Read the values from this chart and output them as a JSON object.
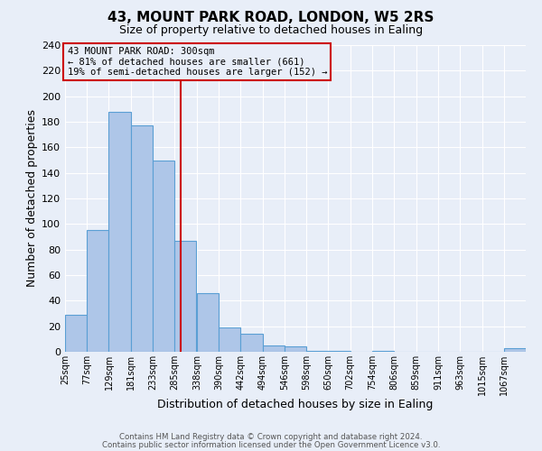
{
  "title": "43, MOUNT PARK ROAD, LONDON, W5 2RS",
  "subtitle": "Size of property relative to detached houses in Ealing",
  "xlabel": "Distribution of detached houses by size in Ealing",
  "ylabel": "Number of detached properties",
  "bin_labels": [
    "25sqm",
    "77sqm",
    "129sqm",
    "181sqm",
    "233sqm",
    "285sqm",
    "338sqm",
    "390sqm",
    "442sqm",
    "494sqm",
    "546sqm",
    "598sqm",
    "650sqm",
    "702sqm",
    "754sqm",
    "806sqm",
    "859sqm",
    "911sqm",
    "963sqm",
    "1015sqm",
    "1067sqm"
  ],
  "bin_edges": [
    25,
    77,
    129,
    181,
    233,
    285,
    338,
    390,
    442,
    494,
    546,
    598,
    650,
    702,
    754,
    806,
    859,
    911,
    963,
    1015,
    1067
  ],
  "bar_heights": [
    29,
    95,
    188,
    177,
    150,
    87,
    46,
    19,
    14,
    5,
    4,
    1,
    1,
    0,
    1,
    0,
    0,
    0,
    0,
    0,
    3
  ],
  "bar_color": "#aec6e8",
  "bar_edge_color": "#5a9fd4",
  "property_value": 300,
  "vline_color": "#cc0000",
  "annotation_line1": "43 MOUNT PARK ROAD: 300sqm",
  "annotation_line2": "← 81% of detached houses are smaller (661)",
  "annotation_line3": "19% of semi-detached houses are larger (152) →",
  "annotation_box_edge_color": "#cc0000",
  "footer_line1": "Contains HM Land Registry data © Crown copyright and database right 2024.",
  "footer_line2": "Contains public sector information licensed under the Open Government Licence v3.0.",
  "ylim": [
    0,
    240
  ],
  "background_color": "#e8eef8",
  "grid_color": "#ffffff"
}
